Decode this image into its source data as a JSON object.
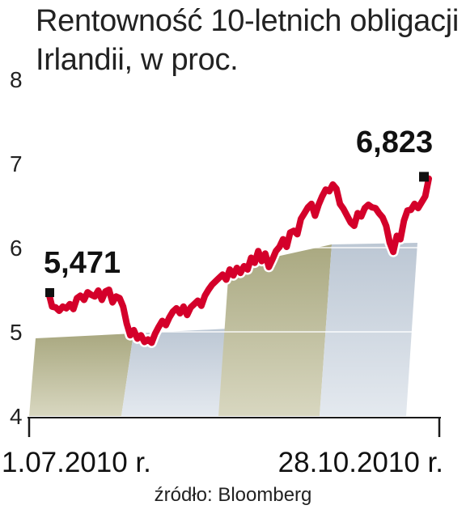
{
  "chart_data": {
    "type": "line",
    "title": "Rentowność 10-letnich obligacji Irlandii, w proc.",
    "y_ticks": [
      "4",
      "5",
      "6",
      "7",
      "8"
    ],
    "ylim": [
      4,
      8
    ],
    "x_labels": {
      "start": "1.07.2010 r.",
      "end": "28.10.2010 r."
    },
    "annotations": {
      "start_value": "5,471",
      "end_value": "6,823"
    },
    "grid": true,
    "series": [
      {
        "values": [
          5.47,
          5.3,
          5.29,
          5.25,
          5.3,
          5.28,
          5.33,
          5.27,
          5.4,
          5.43,
          5.38,
          5.47,
          5.44,
          5.42,
          5.49,
          5.38,
          5.48,
          5.5,
          5.35,
          5.42,
          5.4,
          5.3,
          5.1,
          4.96,
          5.02,
          4.92,
          4.96,
          4.88,
          4.91,
          4.87,
          4.98,
          5.06,
          5.13,
          5.08,
          5.17,
          5.24,
          5.28,
          5.22,
          5.3,
          5.2,
          5.29,
          5.33,
          5.37,
          5.31,
          5.43,
          5.5,
          5.56,
          5.6,
          5.64,
          5.68,
          5.62,
          5.74,
          5.67,
          5.76,
          5.7,
          5.78,
          5.74,
          5.88,
          5.82,
          5.96,
          5.84,
          5.93,
          5.77,
          5.86,
          5.96,
          6.01,
          6.1,
          6.01,
          6.18,
          6.2,
          6.16,
          6.34,
          6.41,
          6.48,
          6.52,
          6.38,
          6.51,
          6.61,
          6.69,
          6.67,
          6.75,
          6.7,
          6.52,
          6.46,
          6.38,
          6.3,
          6.26,
          6.41,
          6.37,
          6.47,
          6.51,
          6.48,
          6.47,
          6.41,
          6.36,
          6.26,
          6.06,
          5.95,
          6.14,
          6.1,
          6.32,
          6.44,
          6.45,
          6.52,
          6.47,
          6.54,
          6.61,
          6.82
        ],
        "color": "#d4002a",
        "start_marker_value": 5.471,
        "end_marker_value": 6.823
      }
    ]
  },
  "source": "źródło: Bloomberg",
  "colors": {
    "line": "#d4002a",
    "band_olive": "#c7c6a6",
    "band_blue": "#d5dce5",
    "axis": "#1a1a1a",
    "marker": "#111111"
  }
}
